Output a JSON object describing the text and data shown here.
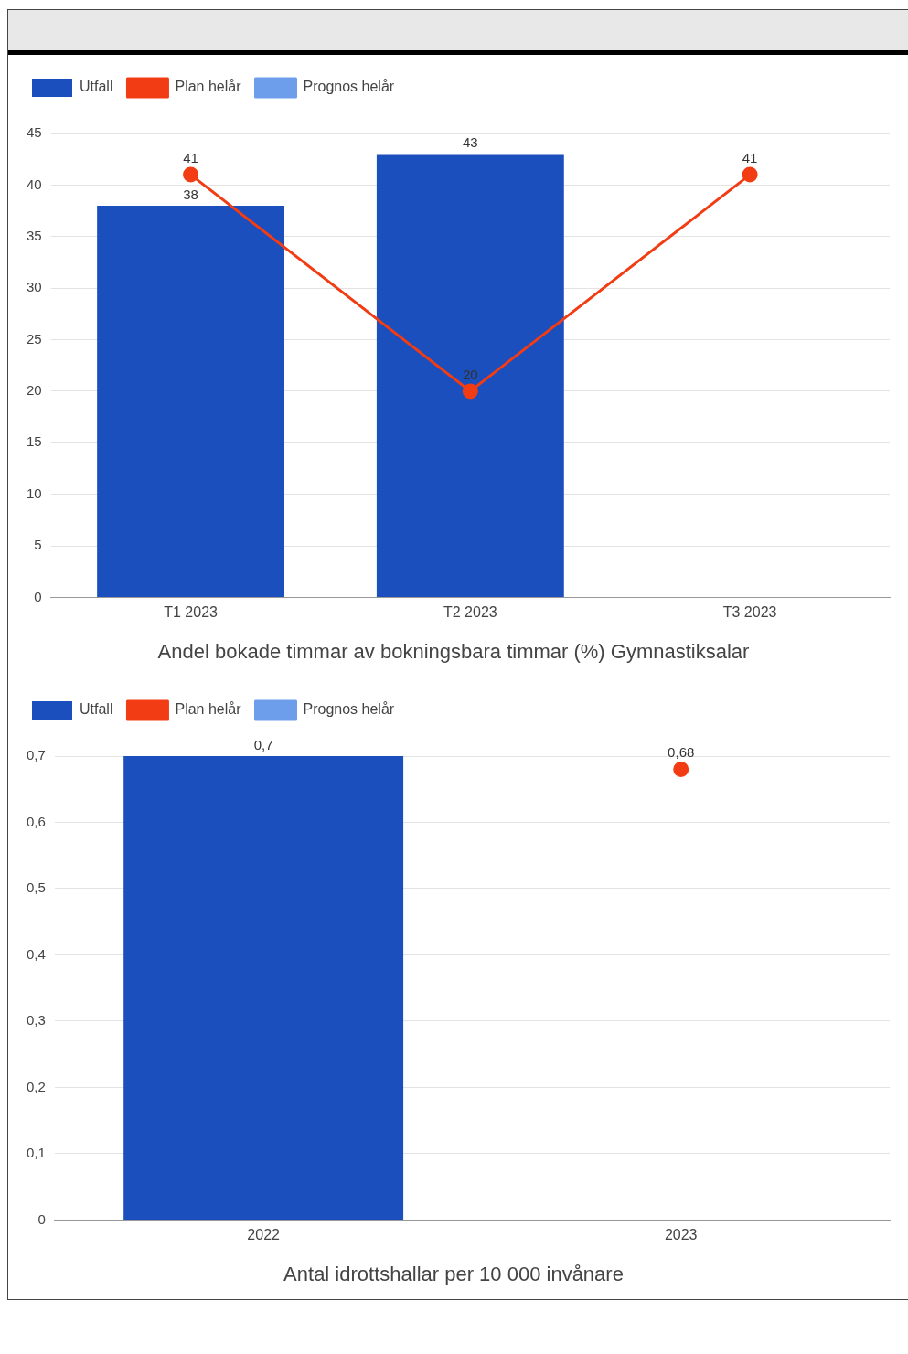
{
  "chart_data": [
    {
      "type": "bar",
      "title": "Andel bokade timmar av bokningsbara timmar (%) Gymnastiksalar",
      "categories": [
        "T1 2023",
        "T2 2023",
        "T3 2023"
      ],
      "series": [
        {
          "name": "Utfall",
          "color": "#1a4fbd",
          "values": [
            38,
            43,
            null
          ]
        },
        {
          "name": "Plan helår",
          "type": "line",
          "color": "#f23c14",
          "values": [
            41,
            20,
            41
          ]
        },
        {
          "name": "Prognos helår",
          "type": "line",
          "color": "#6d9eeb",
          "values": [
            null,
            null,
            null
          ]
        }
      ],
      "ylim": [
        0,
        45
      ],
      "yticks": [
        0,
        5,
        10,
        15,
        20,
        25,
        30,
        35,
        40,
        45
      ],
      "grid": "y",
      "legend": "top left",
      "marker": "circle",
      "data_labels": true
    },
    {
      "type": "bar",
      "title": "Antal idrottshallar per 10 000 invånare",
      "categories": [
        "2022",
        "2023"
      ],
      "series": [
        {
          "name": "Utfall",
          "color": "#1a4fbd",
          "values": [
            0.7,
            null
          ],
          "value_labels": [
            "0,7",
            null
          ]
        },
        {
          "name": "Plan helår",
          "type": "line",
          "color": "#f23c14",
          "values": [
            null,
            0.68
          ],
          "value_labels": [
            null,
            "0,68"
          ]
        },
        {
          "name": "Prognos helår",
          "type": "line",
          "color": "#6d9eeb",
          "values": [
            null,
            null
          ],
          "value_labels": [
            null,
            null
          ]
        }
      ],
      "ylim": [
        0,
        0.7
      ],
      "yticks": [
        {
          "value": 0,
          "label": "0"
        },
        {
          "value": 0.1,
          "label": "0,1"
        },
        {
          "value": 0.2,
          "label": "0,2"
        },
        {
          "value": 0.3,
          "label": "0,3"
        },
        {
          "value": 0.4,
          "label": "0,4"
        },
        {
          "value": 0.5,
          "label": "0,5"
        },
        {
          "value": 0.6,
          "label": "0,6"
        },
        {
          "value": 0.7,
          "label": "0,7"
        }
      ],
      "grid": "y",
      "legend": "top left",
      "marker": "circle"
    }
  ]
}
